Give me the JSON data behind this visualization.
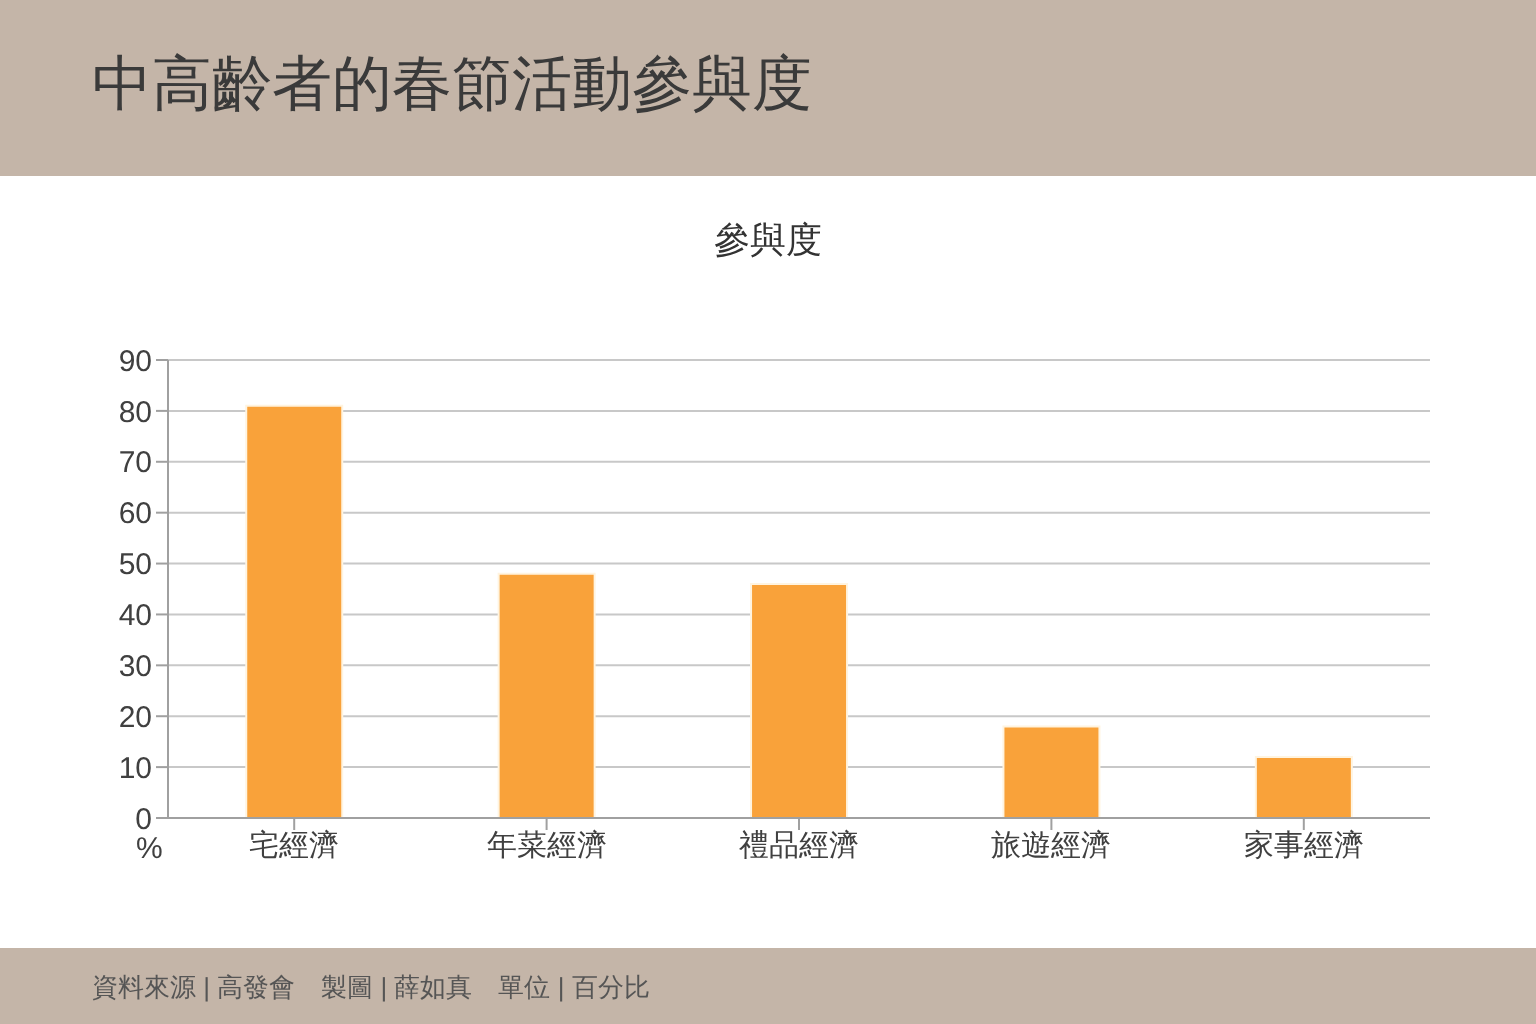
{
  "chart_data": {
    "type": "bar",
    "title": "中高齡者的春節活動參與度",
    "subtitle": "參與度",
    "ylabel": "%",
    "categories": [
      "宅經濟",
      "年菜經濟",
      "禮品經濟",
      "旅遊經濟",
      "家事經濟"
    ],
    "values": [
      81,
      48,
      46,
      18,
      12
    ],
    "color": "#f9a23a",
    "ylim": [
      0,
      90
    ],
    "yticks": [
      0,
      10,
      20,
      30,
      40,
      50,
      60,
      70,
      80,
      90
    ],
    "grid": "y",
    "annotations": [
      "資料來源 | 高發會　製圖 | 薛如真　單位 | 百分比"
    ]
  }
}
